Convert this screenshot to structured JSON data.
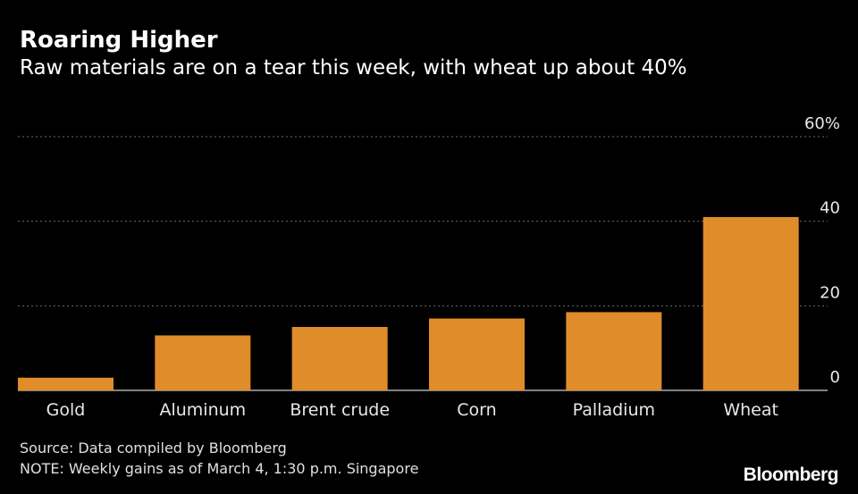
{
  "header": {
    "title": "Roaring Higher",
    "subtitle": "Raw materials are on a tear this week, with wheat up about 40%"
  },
  "footer": {
    "source": "Source: Data compiled by Bloomberg",
    "note": "NOTE: Weekly gains as of March 4, 1:30 p.m. Singapore",
    "brand": "Bloomberg"
  },
  "colors": {
    "bar": "#e08c2a",
    "background": "#000000",
    "grid": "#6b6b6b",
    "text": "#ffffff"
  },
  "chart_data": {
    "type": "bar",
    "title": "Roaring Higher",
    "subtitle": "Raw materials are on a tear this week, with wheat up about 40%",
    "categories": [
      "Gold",
      "Aluminum",
      "Brent crude",
      "Corn",
      "Palladium",
      "Wheat"
    ],
    "values": [
      3,
      13,
      15,
      17,
      18.5,
      41
    ],
    "ylim": [
      0,
      60
    ],
    "yticks": [
      {
        "value": 0,
        "label": "0"
      },
      {
        "value": 20,
        "label": "20"
      },
      {
        "value": 40,
        "label": "40"
      },
      {
        "value": 60,
        "label": "60%"
      }
    ],
    "xlabel": "",
    "ylabel": "",
    "grid": true,
    "y_axis_position": "right"
  }
}
